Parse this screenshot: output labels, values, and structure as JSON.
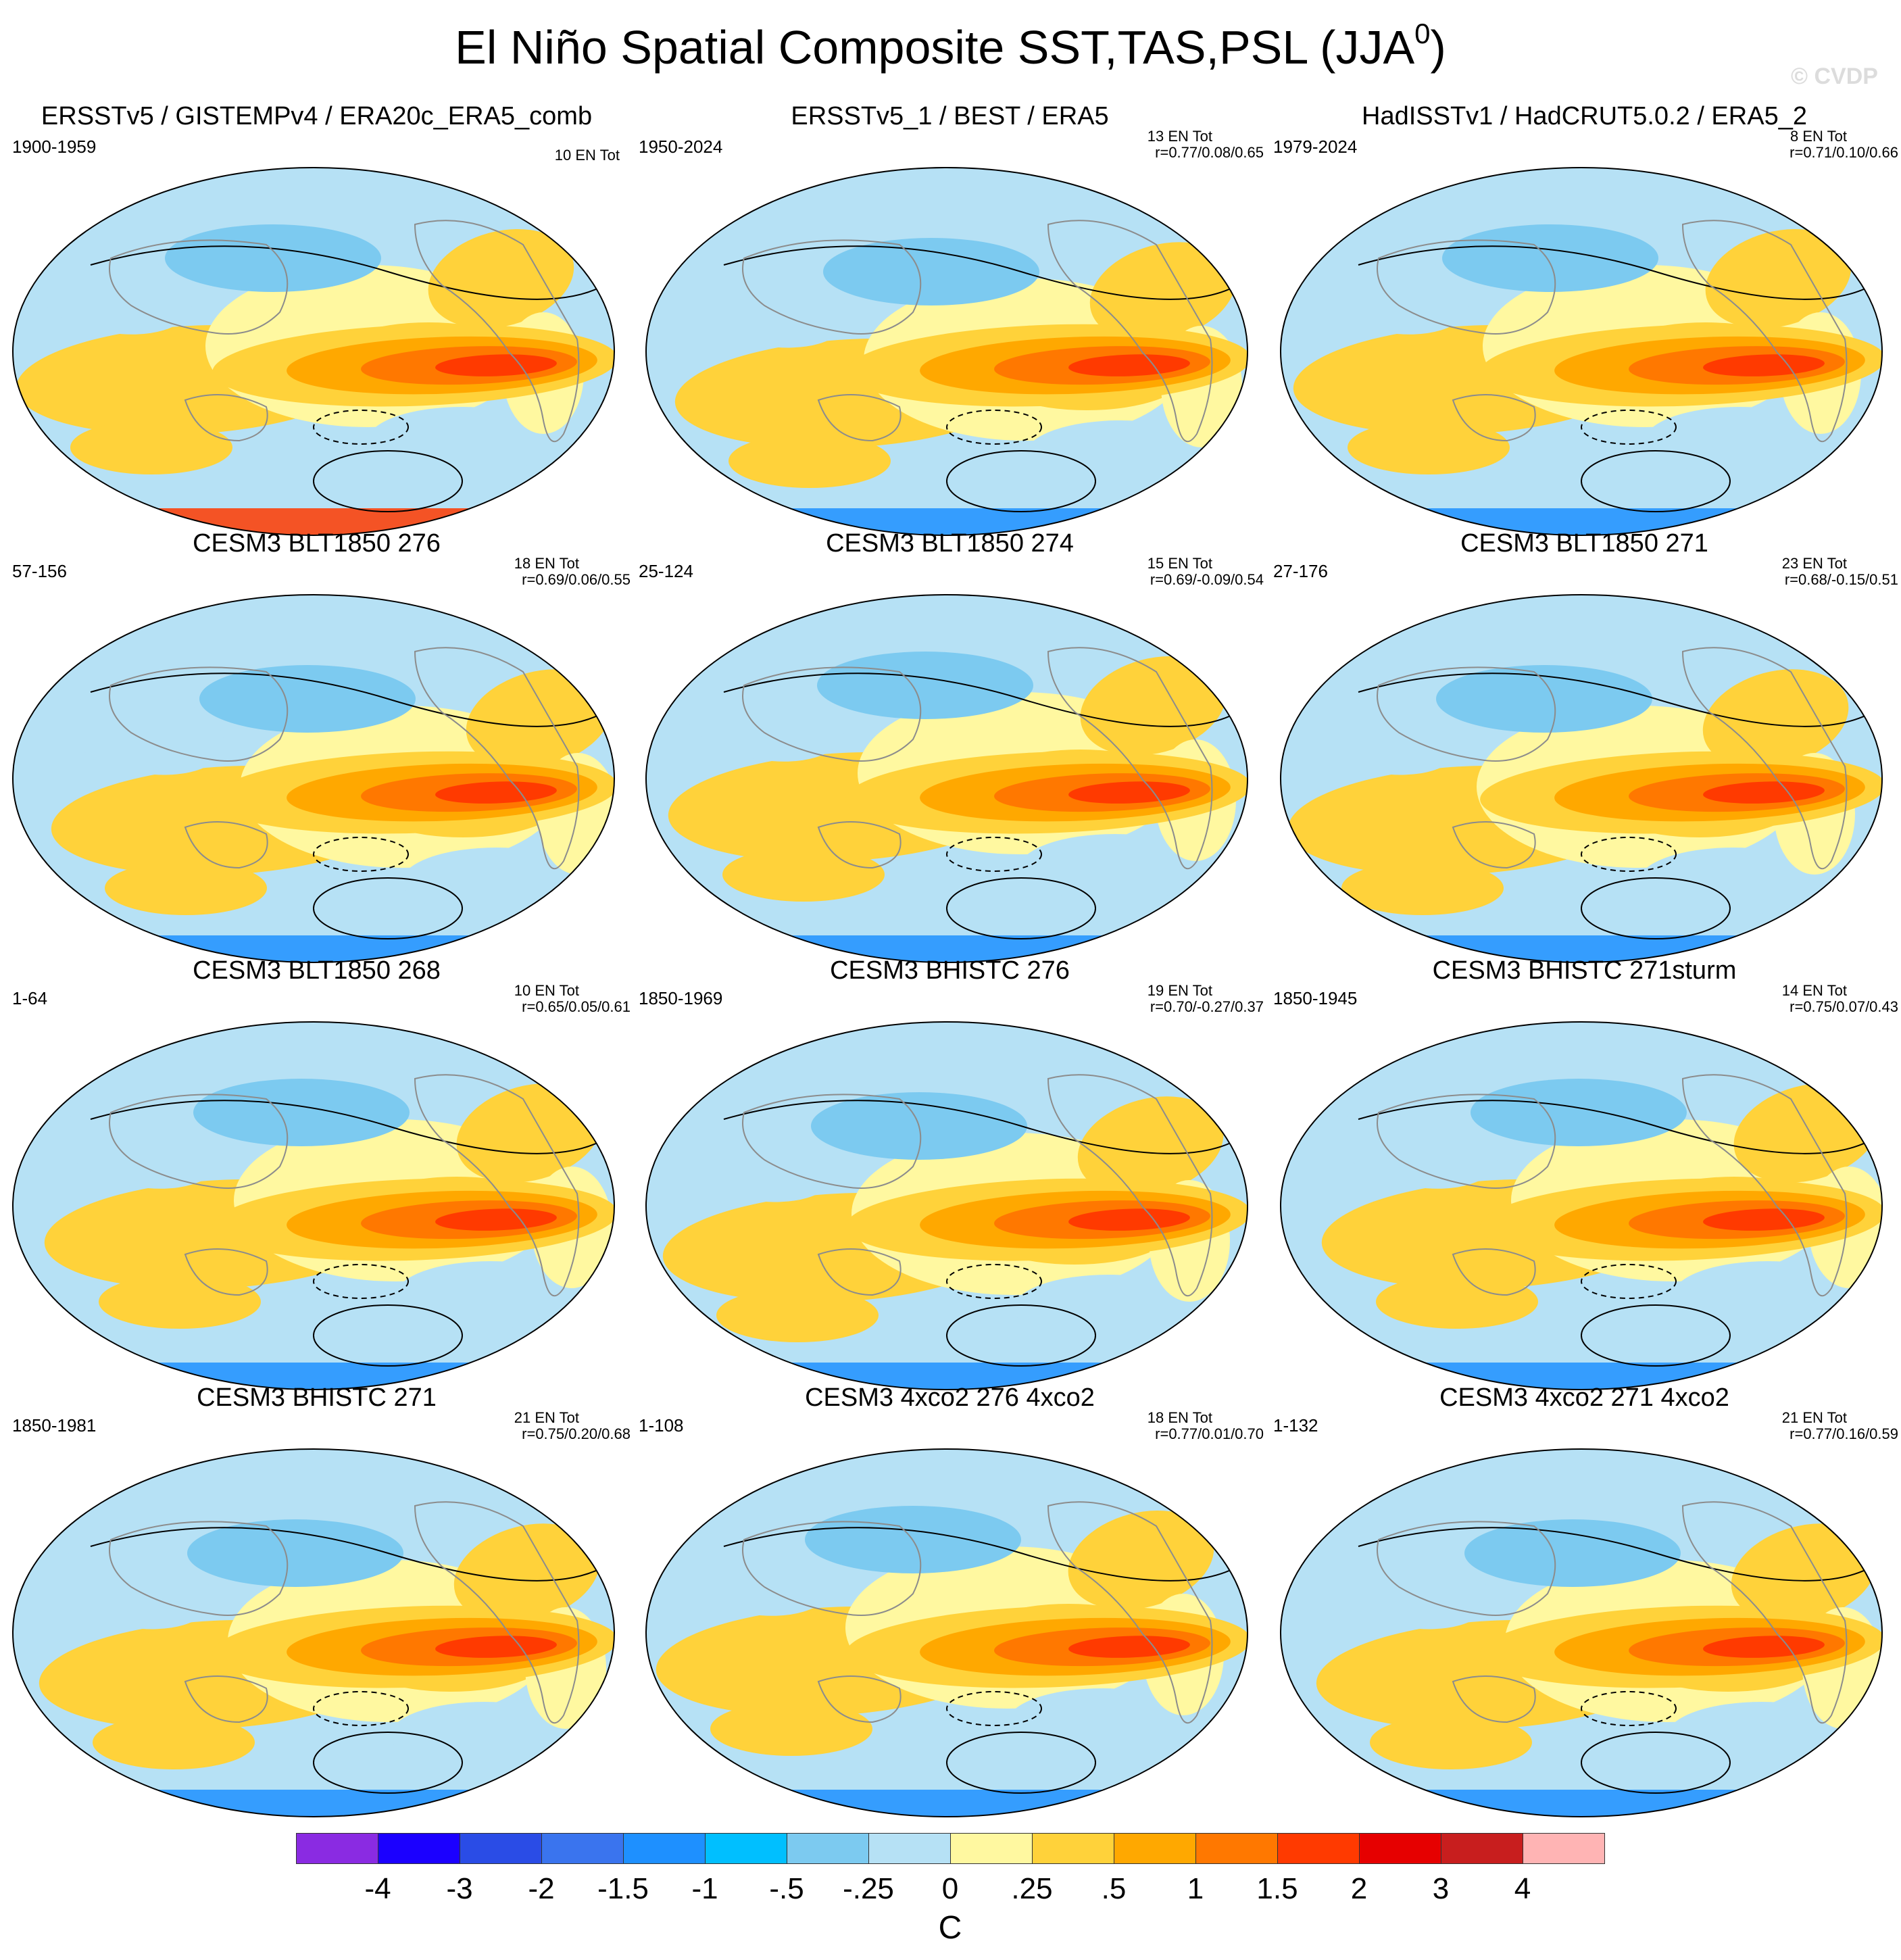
{
  "title": "El Niño Spatial Composite SST,TAS,PSL (JJA",
  "title_superscript": "0",
  "title_close": ")",
  "watermark": "© CVDP",
  "colors": {
    "levels": [
      "#8a2be2",
      "#1b00ff",
      "#2a4ce6",
      "#3a74ee",
      "#1e90ff",
      "#00bfff",
      "#7ccaf0",
      "#b6e1f5",
      "#fff8a0",
      "#ffd23a",
      "#ffa800",
      "#ff7800",
      "#ff3a00",
      "#e60000",
      "#c81e1e",
      "#ffb4b4"
    ],
    "land_outline": "#8c8c8c",
    "contour": "#000000"
  },
  "chart_data": {
    "type": "map-panel-grid",
    "projection": "Robinson",
    "variables": "SST, TAS, PSL",
    "season": "JJA0",
    "units": "C",
    "colorbar_ticks": [
      "-4",
      "-3",
      "-2",
      "-1.5",
      "-1",
      "-.5",
      "-.25",
      "0",
      ".25",
      ".5",
      "1",
      "1.5",
      "2",
      "3",
      "4"
    ],
    "panels": [
      {
        "title": "ERSSTv5 / GISTEMPv4 / ERA20c_ERA5_comb",
        "period": "1900-1959",
        "count": "10 EN Tot",
        "corr": ""
      },
      {
        "title": "ERSSTv5_1 / BEST / ERA5",
        "period": "1950-2024",
        "count": "13 EN Tot",
        "corr": "r=0.77/0.08/0.65"
      },
      {
        "title": "HadISSTv1 / HadCRUT5.0.2 / ERA5_2",
        "period": "1979-2024",
        "count": "8 EN Tot",
        "corr": "r=0.71/0.10/0.66"
      },
      {
        "title": "CESM3 BLT1850 276",
        "period": "57-156",
        "count": "18 EN Tot",
        "corr": "r=0.69/0.06/0.55"
      },
      {
        "title": "CESM3 BLT1850 274",
        "period": "25-124",
        "count": "15 EN Tot",
        "corr": "r=0.69/-0.09/0.54"
      },
      {
        "title": "CESM3 BLT1850 271",
        "period": "27-176",
        "count": "23 EN Tot",
        "corr": "r=0.68/-0.15/0.51"
      },
      {
        "title": "CESM3 BLT1850 268",
        "period": "1-64",
        "count": "10 EN Tot",
        "corr": "r=0.65/0.05/0.61"
      },
      {
        "title": "CESM3 BHISTC 276",
        "period": "1850-1969",
        "count": "19 EN Tot",
        "corr": "r=0.70/-0.27/0.37"
      },
      {
        "title": "CESM3 BHISTC 271sturm",
        "period": "1850-1945",
        "count": "14 EN Tot",
        "corr": "r=0.75/0.07/0.43"
      },
      {
        "title": "CESM3 BHISTC 271",
        "period": "1850-1981",
        "count": "21 EN Tot",
        "corr": "r=0.75/0.20/0.68"
      },
      {
        "title": "CESM3 4xco2 276 4xco2",
        "period": "1-108",
        "count": "18 EN Tot",
        "corr": "r=0.77/0.01/0.70"
      },
      {
        "title": "CESM3 4xco2 271 4xco2",
        "period": "1-132",
        "count": "21 EN Tot",
        "corr": "r=0.77/0.16/0.59"
      }
    ]
  }
}
